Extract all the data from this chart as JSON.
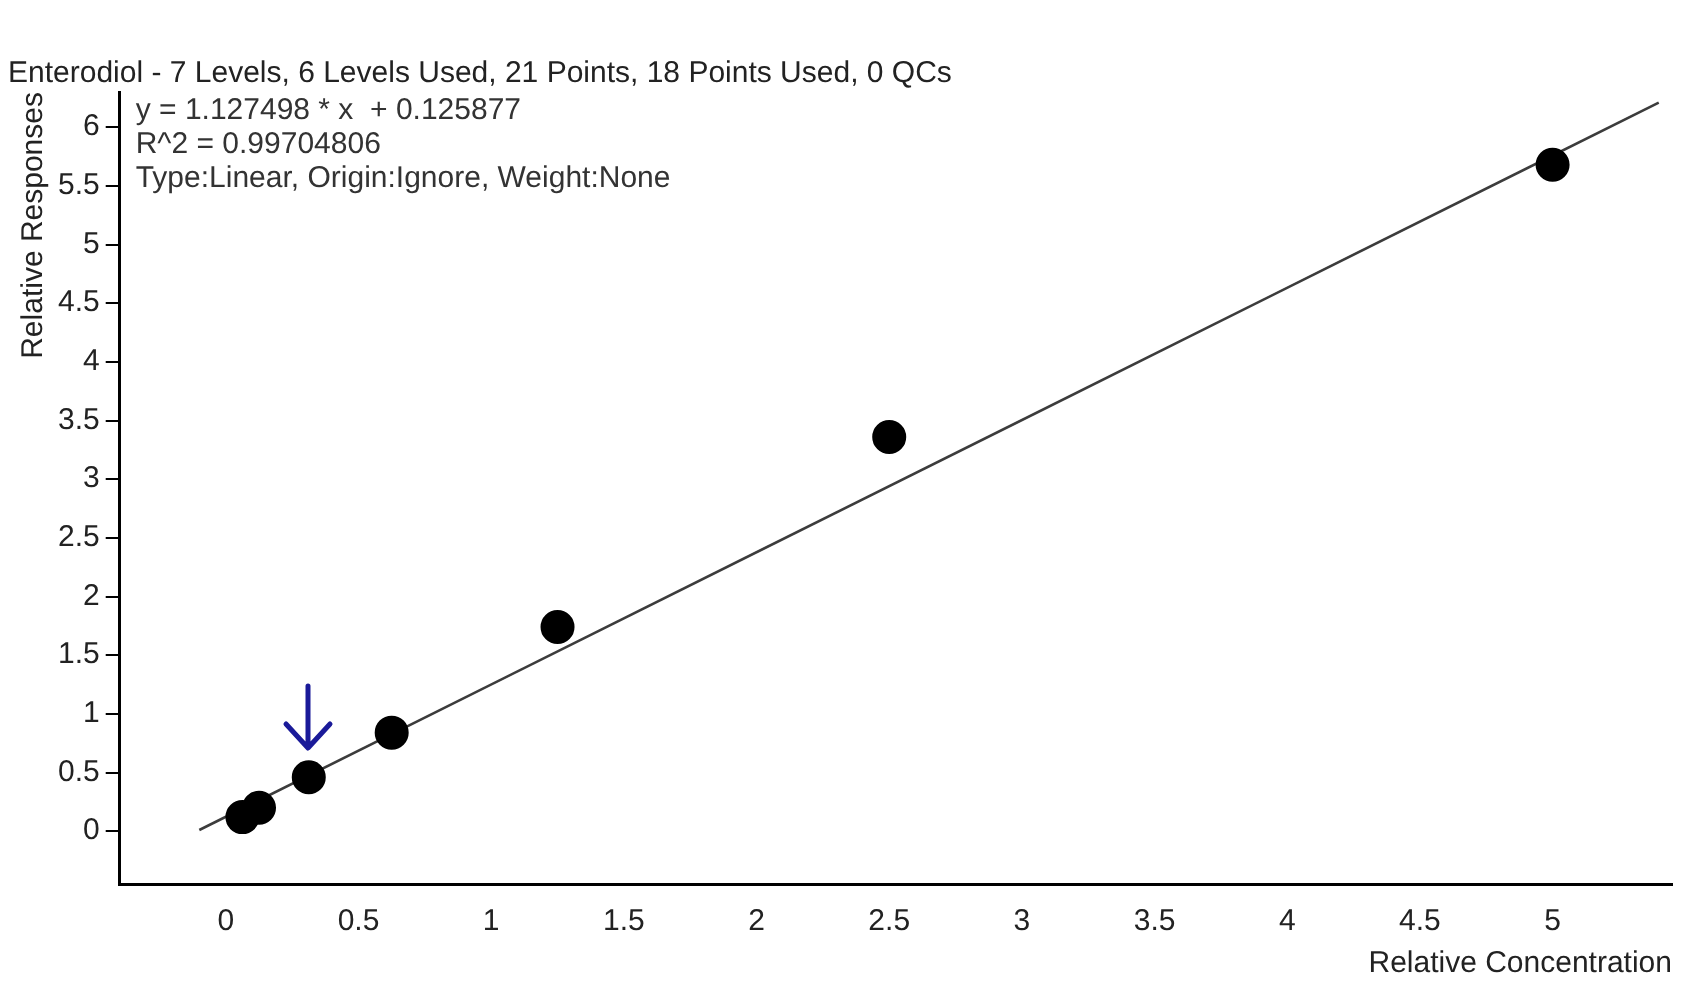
{
  "chart_data": {
    "type": "scatter",
    "title": "Enterodiol - 7 Levels, 6 Levels Used, 21 Points, 18 Points Used, 0 QCs",
    "xlabel": "Relative Concentration",
    "ylabel": "Relative Responses",
    "annotations": [
      "y = 1.127498 * x  + 0.125877",
      "R^2 = 0.99704806",
      "Type:Linear, Origin:Ignore, Weight:None"
    ],
    "series": [
      {
        "color": "#000000",
        "marker": "circle",
        "x": [
          0.0625,
          0.125,
          0.3125,
          0.625,
          1.25,
          5
        ],
        "values": [
          0.12,
          0.2,
          0.46,
          0.84,
          1.74,
          5.68
        ]
      },
      {
        "color": "#000000",
        "marker": "circle",
        "x": [
          2.5
        ],
        "values": [
          3.36
        ]
      },
      {
        "type": "line",
        "color": "#3c3c3c",
        "marker": "none",
        "x": [
          -0.1,
          5.4
        ],
        "values": [
          0.01,
          6.21
        ]
      }
    ],
    "xlim": [
      -0.4,
      5.45
    ],
    "ylim": [
      -0.45,
      6.3
    ],
    "xticks": [
      0,
      0.5,
      1,
      1.5,
      2,
      2.5,
      3,
      3.5,
      4,
      4.5,
      5
    ],
    "yticks": [
      0,
      0.5,
      1,
      1.5,
      2,
      2.5,
      3,
      3.5,
      4,
      4.5,
      5,
      5.5,
      6
    ],
    "grid": false,
    "legend": false
  }
}
